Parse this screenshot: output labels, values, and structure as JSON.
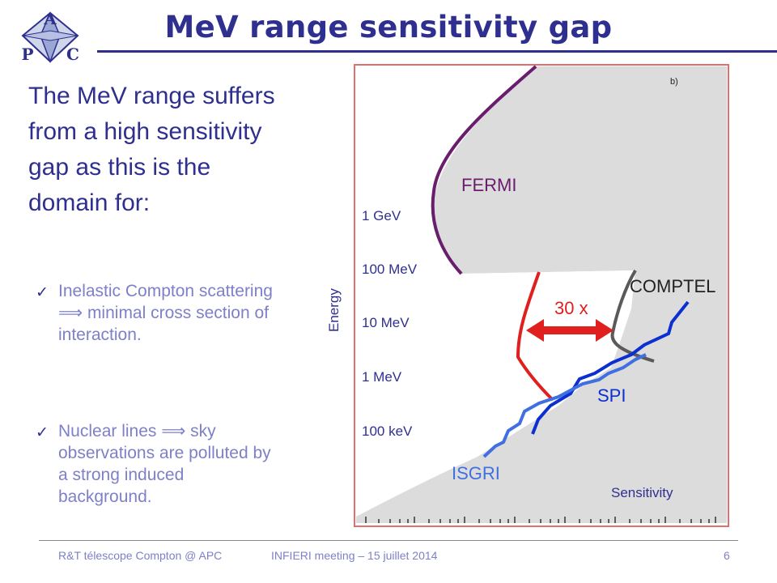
{
  "slide": {
    "title": "MeV range sensitivity gap",
    "intro": "The MeV range suffers from a high sensitivity gap as this is the domain for:",
    "bullets": [
      {
        "text": "Inelastic Compton scattering ⟹ minimal cross section of interaction."
      },
      {
        "text": "Nuclear lines ⟹ sky observations are polluted by a strong induced background."
      }
    ],
    "check_icon": "✓"
  },
  "logo": {
    "letters": [
      "A",
      "P",
      "C"
    ]
  },
  "diagram": {
    "panel_label": "b)",
    "axis_label_y": "Energy",
    "axis_label_x": "Sensitivity",
    "energy_ticks": [
      "1 GeV",
      "100 MeV",
      "10 MeV",
      "1 MeV",
      "100 keV"
    ],
    "instruments": {
      "fermi": "FERMI",
      "comptel": "COMPTEL",
      "spi": "SPI",
      "isgri": "ISGRI"
    },
    "gap_label": "30 x",
    "colors": {
      "fermi": "#6a1d6d",
      "comptel": "#5a5a5a",
      "spi": "#0b2fd0",
      "isgri": "#3f6fe0",
      "gap": "#e01f1f",
      "region": "#dcdcdc",
      "border": "#e07070"
    }
  },
  "footer": {
    "left": "R&T télescope Compton @ APC",
    "center": "INFIERI meeting – 15 juillet 2014",
    "page": "6"
  }
}
